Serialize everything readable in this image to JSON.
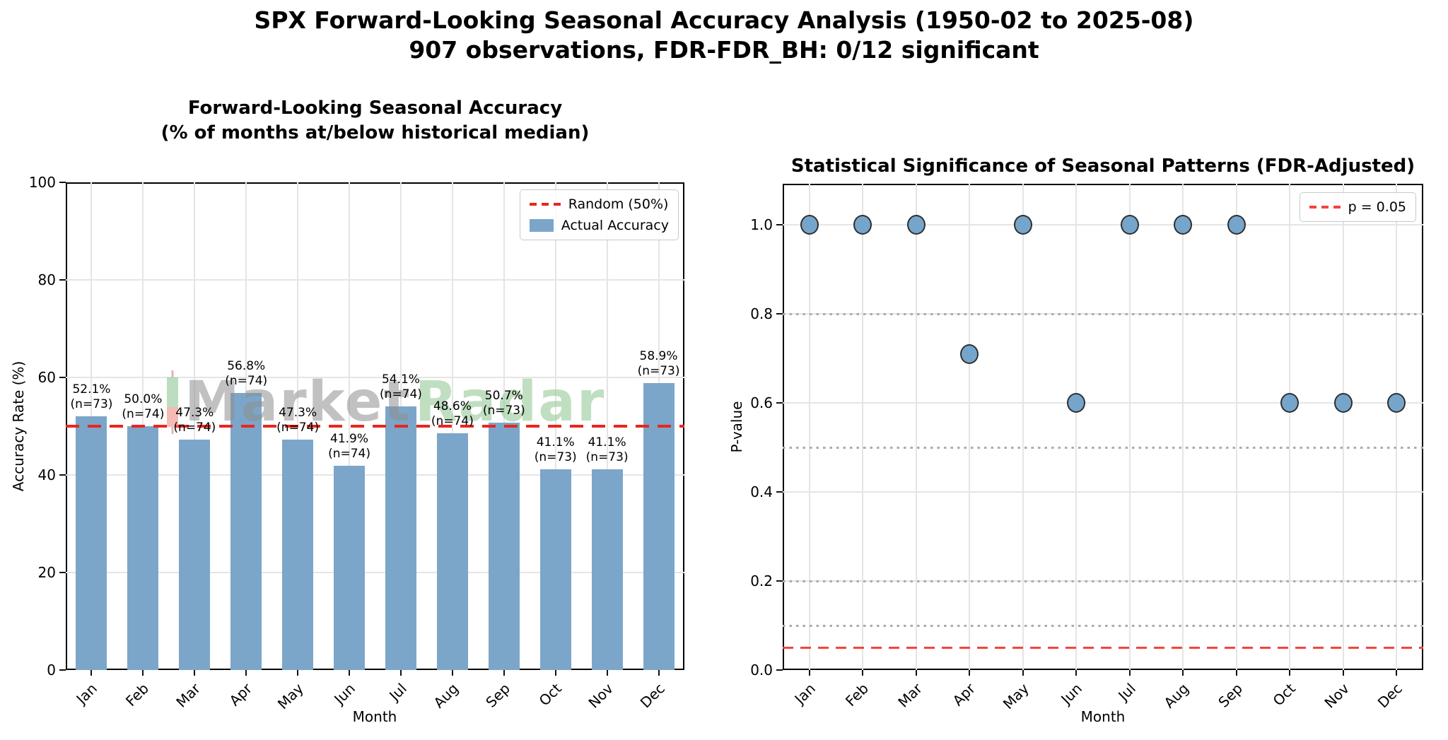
{
  "figure": {
    "title_line1": "SPX Forward-Looking Seasonal Accuracy Analysis (1950-02 to 2025-08)",
    "title_line2": "907 observations, FDR-FDR_BH: 0/12 significant"
  },
  "watermark": {
    "text_gray": "Market",
    "text_green": "Radar",
    "gray_color": "#8f8f8f",
    "green_color": "#8ec690",
    "candle_green": "#86c28e",
    "candle_red": "#ed8278",
    "candle_wick": "#d2786e"
  },
  "months": [
    "Jan",
    "Feb",
    "Mar",
    "Apr",
    "May",
    "Jun",
    "Jul",
    "Aug",
    "Sep",
    "Oct",
    "Nov",
    "Dec"
  ],
  "chart_data": [
    {
      "type": "bar",
      "title_lines": [
        "Forward-Looking Seasonal Accuracy",
        "(% of months at/below historical median)"
      ],
      "xlabel": "Month",
      "ylabel": "Accuracy Rate (%)",
      "ylim": [
        0,
        100
      ],
      "ytick_values": [
        0,
        20,
        40,
        60,
        80,
        100
      ],
      "ytick_labels": [
        "0",
        "20",
        "40",
        "60",
        "80",
        "100"
      ],
      "categories": [
        "Jan",
        "Feb",
        "Mar",
        "Apr",
        "May",
        "Jun",
        "Jul",
        "Aug",
        "Sep",
        "Oct",
        "Nov",
        "Dec"
      ],
      "values": [
        52.1,
        50.0,
        47.3,
        56.8,
        47.3,
        41.9,
        54.1,
        48.6,
        50.7,
        41.1,
        41.1,
        58.9
      ],
      "n_values": [
        73,
        74,
        74,
        74,
        74,
        74,
        74,
        74,
        73,
        73,
        73,
        73
      ],
      "bar_color": "#7ca6c9",
      "reference_line": {
        "value": 50,
        "label": "Random (50%)",
        "color": "#e8261f",
        "style": "dashed"
      },
      "legend_entries": [
        {
          "label": "Random (50%)"
        },
        {
          "label": "Actual Accuracy"
        }
      ],
      "legend_position": "upper right",
      "grid": true
    },
    {
      "type": "scatter",
      "title": "Statistical Significance of Seasonal Patterns (FDR-Adjusted)",
      "xlabel": "Month",
      "ylabel": "P-value",
      "ylim": [
        0,
        1.09
      ],
      "ytick_values": [
        0,
        0.2,
        0.4,
        0.6,
        0.8,
        1.0
      ],
      "ytick_labels": [
        "0.0",
        "0.2",
        "0.4",
        "0.6",
        "0.8",
        "1.0"
      ],
      "categories": [
        "Jan",
        "Feb",
        "Mar",
        "Apr",
        "May",
        "Jun",
        "Jul",
        "Aug",
        "Sep",
        "Oct",
        "Nov",
        "Dec"
      ],
      "values": [
        1.0,
        1.0,
        1.0,
        0.71,
        1.0,
        0.6,
        1.0,
        1.0,
        1.0,
        0.6,
        0.6,
        0.6
      ],
      "marker_color": "#76a5cb",
      "marker_edge_color": "#2f2f2f",
      "threshold_lines_dotted": [
        0.8,
        0.5,
        0.2,
        0.1
      ],
      "reference_line": {
        "value": 0.05,
        "label": "p = 0.05",
        "color": "#f2453d",
        "style": "dashed"
      },
      "legend_entries": [
        {
          "label": "p = 0.05"
        }
      ],
      "legend_position": "upper right",
      "grid": true
    }
  ]
}
